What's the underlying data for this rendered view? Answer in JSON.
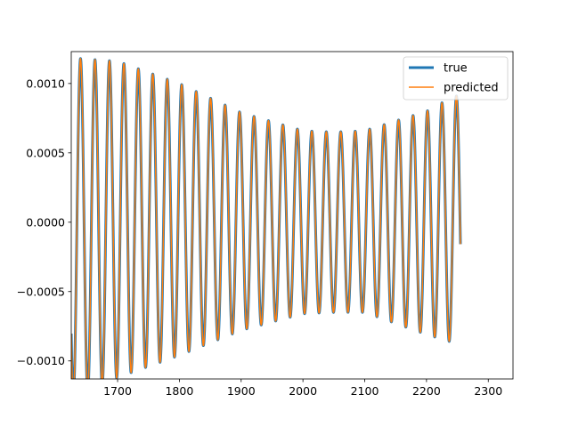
{
  "chart_data": {
    "type": "line",
    "title": "",
    "xlabel": "",
    "ylabel": "",
    "xlim": [
      1625,
      2340
    ],
    "ylim": [
      -0.00113,
      0.00123
    ],
    "xticks": [
      1700,
      1800,
      1900,
      2000,
      2100,
      2200,
      2300
    ],
    "xtick_labels": [
      "1700",
      "1800",
      "1900",
      "2000",
      "2100",
      "2200",
      "2300"
    ],
    "yticks": [
      -0.001,
      -0.0005,
      0.0,
      0.0005,
      0.001
    ],
    "ytick_labels": [
      "−0.0010",
      "−0.0005",
      "0.0000",
      "0.0005",
      "0.0010"
    ],
    "grid": false,
    "legend_position": "top-right",
    "x_start": 1625,
    "x_end": 2255,
    "period": 23.4,
    "phase_x": 1640,
    "envelope": {
      "x": [
        1640,
        1700,
        1800,
        1900,
        2000,
        2050,
        2100,
        2200,
        2245
      ],
      "upper": [
        0.00118,
        0.00116,
        0.001,
        0.00079,
        0.00066,
        0.00065,
        0.00066,
        0.0008,
        0.00091
      ],
      "lower": [
        -0.00125,
        -0.00112,
        -0.00096,
        -0.00078,
        -0.00066,
        -0.00065,
        -0.00065,
        -0.00081,
        -0.00087
      ]
    },
    "series": [
      {
        "name": "true",
        "color": "#1f77b4",
        "linewidth": 3
      },
      {
        "name": "predicted",
        "color": "#ff7f0e",
        "linewidth": 1.5
      }
    ]
  }
}
